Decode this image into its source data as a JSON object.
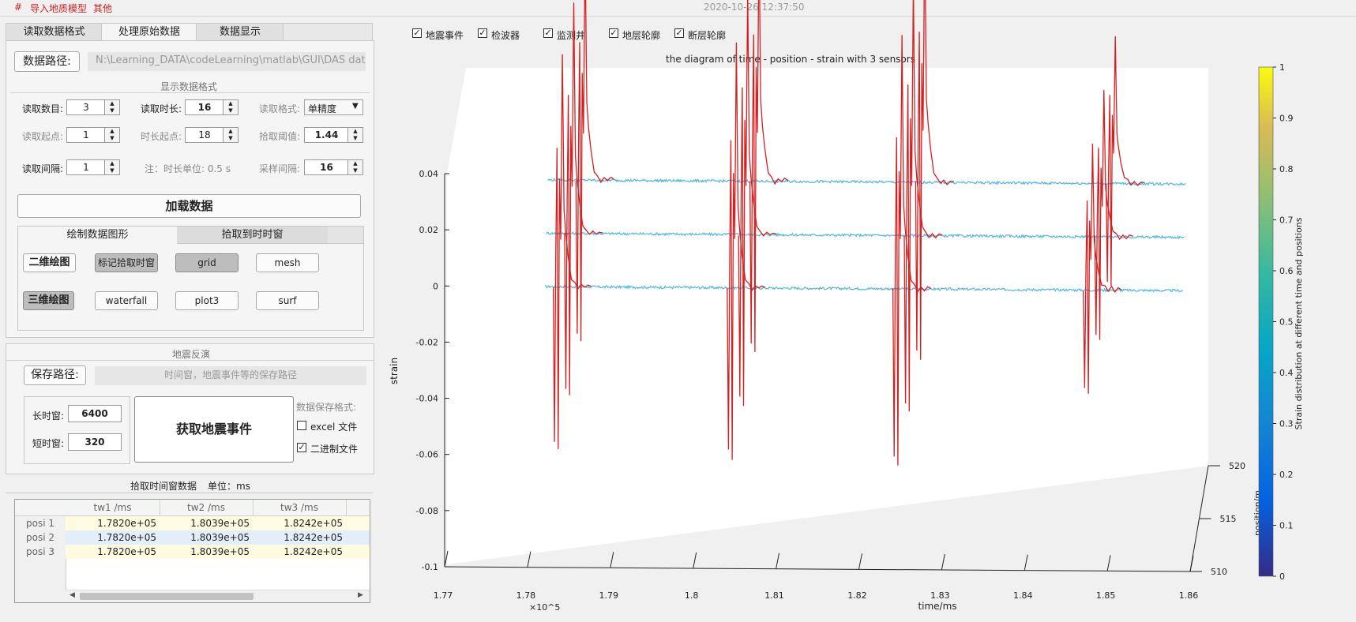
{
  "menubar": {
    "hash": "#",
    "import_model": "导入地质模型",
    "other": "其他",
    "timestamp": "2020-10-26 12:37:50"
  },
  "main_tabs": [
    "读取数据格式",
    "处理原始数据",
    "数据显示"
  ],
  "data_path": {
    "button": "数据路径:",
    "value": "N:\\Learning_DATA\\codeLearning\\matlab\\GUI\\DAS data"
  },
  "display_format": {
    "title": "显示数据格式",
    "read_count_label": "读取数目:",
    "read_count": "3",
    "read_duration_label": "读取时长:",
    "read_duration": "16",
    "read_format_label": "读取格式:",
    "read_format": "单精度",
    "read_start_label": "读取起点:",
    "read_start": "1",
    "duration_start_label": "时长起点:",
    "duration_start": "18",
    "pick_threshold_label": "拾取阈值:",
    "pick_threshold": "1.44",
    "read_interval_label": "读取间隔:",
    "read_interval": "1",
    "note": "注：时长单位: 0.5 s",
    "sample_interval_label": "采样间隔:",
    "sample_interval": "16"
  },
  "load_button": "加载数据",
  "plot_tabs": [
    "绘制数据图形",
    "拾取到时时窗"
  ],
  "plot_buttons": {
    "plot2d": "二维绘图",
    "mark_window": "标记拾取时窗",
    "grid": "grid",
    "mesh": "mesh",
    "plot3d": "三维绘图",
    "waterfall": "waterfall",
    "plot3": "plot3",
    "surf": "surf"
  },
  "inversion": {
    "title": "地震反演",
    "save_path_button": "保存路径:",
    "save_path_placeholder": "时间窗，地震事件等的保存路径",
    "long_window_label": "长时窗:",
    "long_window": "6400",
    "short_window_label": "短时窗:",
    "short_window": "320",
    "get_events_button": "获取地震事件",
    "save_format_label": "数据保存格式:",
    "excel_label": "excel 文件",
    "excel_checked": false,
    "binary_label": "二进制文件",
    "binary_checked": true
  },
  "pick_table": {
    "title": "拾取时间窗数据",
    "unit": "单位：ms",
    "headers": [
      "",
      "tw1 /ms",
      "tw2 /ms",
      "tw3 /ms"
    ],
    "rows": [
      [
        "posi 1",
        "1.7820e+05",
        "1.8039e+05",
        "1.8242e+05"
      ],
      [
        "posi 2",
        "1.7820e+05",
        "1.8039e+05",
        "1.8242e+05"
      ],
      [
        "posi 3",
        "1.7820e+05",
        "1.8039e+05",
        "1.8242e+05"
      ]
    ]
  },
  "layers": [
    {
      "label": "地震事件",
      "checked": true
    },
    {
      "label": "检波器",
      "checked": true
    },
    {
      "label": "监测井",
      "checked": true
    },
    {
      "label": "地层轮廓",
      "checked": true
    },
    {
      "label": "断层轮廓",
      "checked": true
    }
  ],
  "colors": {
    "trace": "#4db8dc",
    "event": "#d42020",
    "menu_red": "#d02020"
  },
  "chart_data": {
    "type": "line",
    "title": "the diagram of time - position - strain with 3 sensors",
    "xlabel": "time/ms",
    "ylabel": "strain",
    "zlabel": "position/m",
    "x_multiplier": "×10^5",
    "xlim": [
      177000,
      186000
    ],
    "ylim": [
      -0.1,
      0.04
    ],
    "zlim": [
      510,
      520
    ],
    "x_ticks": [
      "1.77",
      "1.78",
      "1.79",
      "1.8",
      "1.81",
      "1.82",
      "1.83",
      "1.84",
      "1.85",
      "1.86"
    ],
    "y_ticks": [
      "0.04",
      "0.02",
      "0",
      "-0.02",
      "-0.04",
      "-0.06",
      "-0.08",
      "-0.1"
    ],
    "z_ticks": [
      "510",
      "515",
      "520"
    ],
    "series": [
      {
        "position": 512,
        "base": 0.0,
        "x_start": 178200,
        "x_end": 185900
      },
      {
        "position": 515,
        "base": 0.019,
        "x_start": 178200,
        "x_end": 185900
      },
      {
        "position": 518,
        "base": 0.038,
        "x_start": 178200,
        "x_end": 185900
      }
    ],
    "events_ms": [
      178300,
      180400,
      182400,
      184700
    ],
    "colorbar": {
      "label": "Strain distribution at different time and positions",
      "ticks": [
        "0",
        "0.1",
        "0.2",
        "0.3",
        "0.4",
        "0.5",
        "0.6",
        "0.7",
        "0.8",
        "0.9",
        "1"
      ],
      "colormap": "parula"
    }
  }
}
